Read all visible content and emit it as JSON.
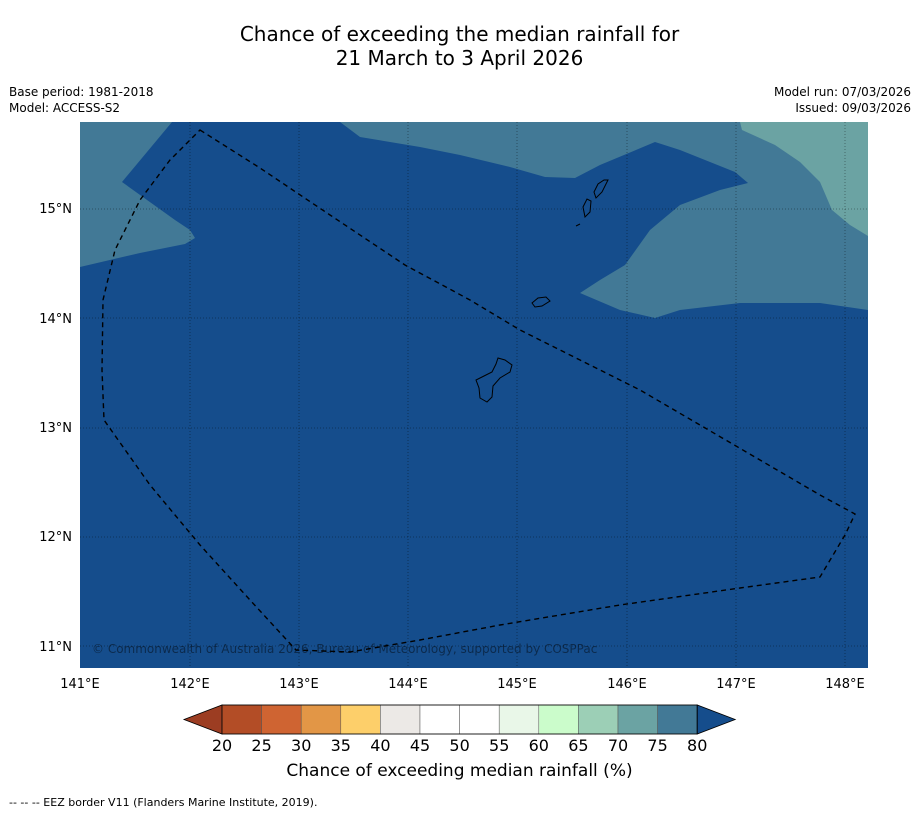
{
  "title_line1": "Chance of exceeding the median rainfall for",
  "title_line2": "21 March to 3 April 2026",
  "base_period": "Base period: 1981-2018",
  "model": "Model: ACCESS-S2",
  "model_run": "Model run: 07/03/2026",
  "issued": "Issued: 09/03/2026",
  "copyright": "© Commonwealth of Australia 2026, Bureau of Meteorology, supported by COSPPac",
  "colorbar_label": "Chance of exceeding median rainfall (%)",
  "footer_note": "--  --  -- EEZ border V11 (Flanders Marine Institute, 2019).",
  "lon_ticks": [
    "141°E",
    "142°E",
    "143°E",
    "144°E",
    "145°E",
    "146°E",
    "147°E",
    "148°E"
  ],
  "lat_ticks": [
    "15°N",
    "14°N",
    "13°N",
    "12°N",
    "11°N"
  ],
  "colorbar": {
    "ticks": [
      "20",
      "25",
      "30",
      "35",
      "40",
      "45",
      "50",
      "55",
      "60",
      "65",
      "70",
      "75",
      "80"
    ],
    "colors": [
      "#b34d26",
      "#cf6432",
      "#e29646",
      "#fdcf6a",
      "#ece9e6",
      "#ffffff",
      "#ffffff",
      "#e9f7e8",
      "#cbfccb",
      "#9ccfb6",
      "#6ba3a3",
      "#427996"
    ],
    "under_color": "#9c3d22",
    "over_color": "#154d8c"
  },
  "map_colors": {
    "band_75_80": "#427996",
    "band_70_75": "#6ba3a3",
    "band_over_80": "#154d8c"
  }
}
